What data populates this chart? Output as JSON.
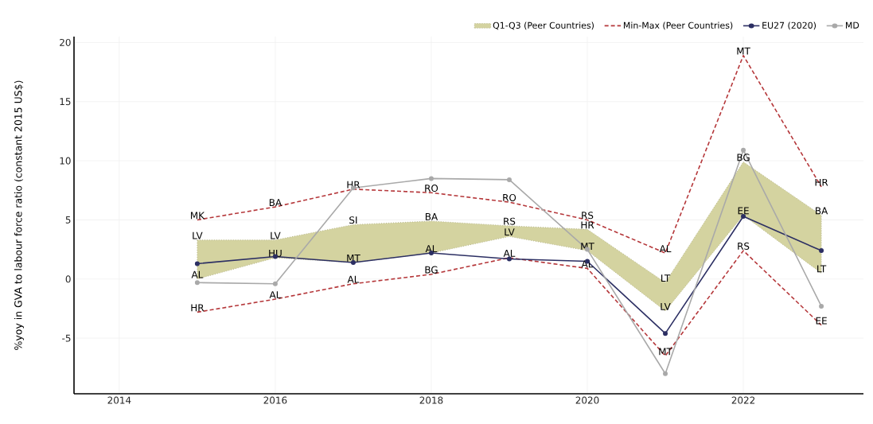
{
  "chart_data": {
    "type": "line",
    "ylabel": "%yoy in GVA to labour force ratio (constant 2015 US$)",
    "x": [
      2015,
      2016,
      2017,
      2018,
      2019,
      2020,
      2021,
      2022,
      2023
    ],
    "xlim": [
      2013.42,
      2023.54
    ],
    "xticks": [
      2014,
      2016,
      2018,
      2020,
      2022
    ],
    "ylim": [
      -9.7,
      20.5
    ],
    "yticks": [
      -5,
      0,
      5,
      10,
      15,
      20
    ],
    "grid": true,
    "legend": "top right",
    "series": [
      {
        "name": "Q1-Q3 (Peer Countries)",
        "type": "area",
        "color": "#d4d3a0",
        "line_style": "dotted",
        "values": [
          null,
          null,
          null,
          null,
          null,
          null,
          null,
          null,
          null
        ],
        "lower": [
          0.0,
          1.8,
          1.4,
          2.2,
          3.6,
          2.4,
          -2.7,
          5.4,
          0.5
        ],
        "upper": [
          3.3,
          3.3,
          4.6,
          4.9,
          4.5,
          4.2,
          -0.3,
          9.9,
          5.4
        ]
      },
      {
        "name": "Min-Max (Peer Countries)",
        "color": "#b5373a",
        "line_style": "dashed",
        "marker": "none",
        "values": [
          5.0,
          6.1,
          7.6,
          7.3,
          6.5,
          5.0,
          2.2,
          18.9,
          7.8
        ]
      },
      {
        "color": "#b5373a",
        "line_style": "dashed",
        "marker": "none",
        "values": [
          -2.8,
          -1.7,
          -0.4,
          0.4,
          1.8,
          0.9,
          -6.5,
          2.4,
          -3.9
        ]
      },
      {
        "name": "EU27 (2020)",
        "color": "#2c2f63",
        "line_style": "solid",
        "marker": "circle",
        "values": [
          1.3,
          1.9,
          1.4,
          2.2,
          1.7,
          1.5,
          -4.6,
          5.3,
          2.4
        ]
      },
      {
        "name": "MD",
        "color": "#a9a9a9",
        "line_style": "solid",
        "marker": "circle",
        "values": [
          -0.3,
          -0.4,
          7.7,
          8.5,
          8.4,
          2.5,
          -8.0,
          10.9,
          -2.3
        ]
      }
    ],
    "annotations": [
      {
        "text": "MK",
        "x": 2015,
        "y": 5.0
      },
      {
        "text": "LV",
        "x": 2015,
        "y": 3.3
      },
      {
        "text": "AL",
        "x": 2015,
        "y": 0.0
      },
      {
        "text": "HR",
        "x": 2015,
        "y": -2.8
      },
      {
        "text": "BA",
        "x": 2016,
        "y": 6.1
      },
      {
        "text": "LV",
        "x": 2016,
        "y": 3.3
      },
      {
        "text": "HU",
        "x": 2016,
        "y": 1.8
      },
      {
        "text": "AL",
        "x": 2016,
        "y": -1.7
      },
      {
        "text": "HR",
        "x": 2017,
        "y": 7.6
      },
      {
        "text": "SI",
        "x": 2017,
        "y": 4.6
      },
      {
        "text": "MT",
        "x": 2017,
        "y": 1.4
      },
      {
        "text": "AL",
        "x": 2017,
        "y": -0.4
      },
      {
        "text": "RO",
        "x": 2018,
        "y": 7.3
      },
      {
        "text": "BA",
        "x": 2018,
        "y": 4.9
      },
      {
        "text": "AL",
        "x": 2018,
        "y": 2.2
      },
      {
        "text": "BG",
        "x": 2018,
        "y": 0.4
      },
      {
        "text": "RO",
        "x": 2019,
        "y": 6.5
      },
      {
        "text": "RS",
        "x": 2019,
        "y": 4.5
      },
      {
        "text": "LV",
        "x": 2019,
        "y": 3.6
      },
      {
        "text": "AL",
        "x": 2019,
        "y": 1.8
      },
      {
        "text": "RS",
        "x": 2020,
        "y": 5.0
      },
      {
        "text": "HR",
        "x": 2020,
        "y": 4.2
      },
      {
        "text": "MT",
        "x": 2020,
        "y": 2.4
      },
      {
        "text": "AL",
        "x": 2020,
        "y": 0.9
      },
      {
        "text": "AL",
        "x": 2021,
        "y": 2.2
      },
      {
        "text": "LT",
        "x": 2021,
        "y": -0.3
      },
      {
        "text": "LV",
        "x": 2021,
        "y": -2.7
      },
      {
        "text": "MT",
        "x": 2021,
        "y": -6.5
      },
      {
        "text": "MT",
        "x": 2022,
        "y": 18.9
      },
      {
        "text": "BG",
        "x": 2022,
        "y": 9.9
      },
      {
        "text": "EE",
        "x": 2022,
        "y": 5.4
      },
      {
        "text": "RS",
        "x": 2022,
        "y": 2.4
      },
      {
        "text": "HR",
        "x": 2023,
        "y": 7.8
      },
      {
        "text": "BA",
        "x": 2023,
        "y": 5.4
      },
      {
        "text": "LT",
        "x": 2023,
        "y": 0.5
      },
      {
        "text": "EE",
        "x": 2023,
        "y": -3.9
      }
    ]
  }
}
